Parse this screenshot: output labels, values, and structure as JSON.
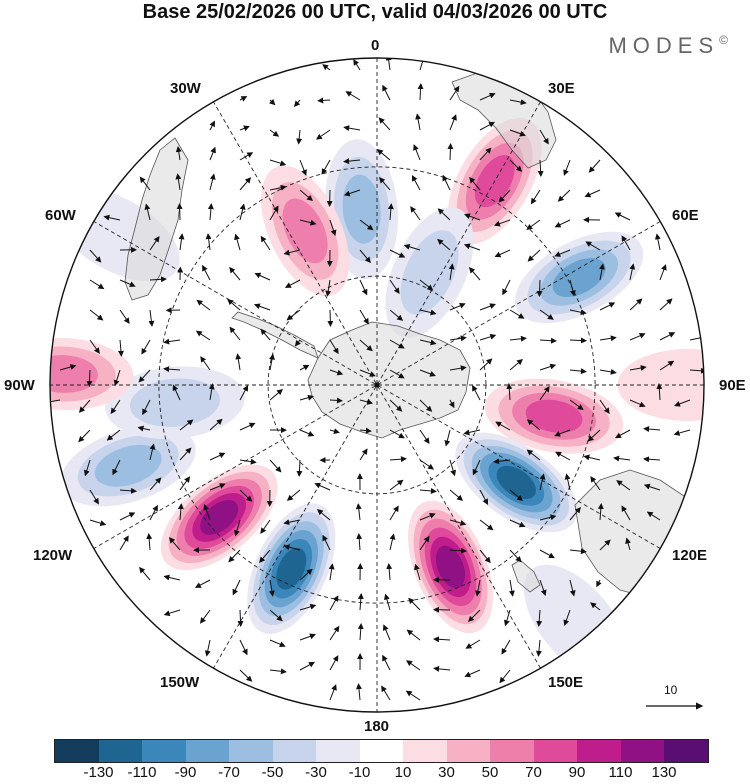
{
  "title": "Base 25/02/2026 00 UTC, valid 04/03/2026 00 UTC",
  "brand": "MODES",
  "brand_mark": "©",
  "longitude_labels": {
    "lon_0": "0",
    "lon_30e": "30E",
    "lon_60e": "60E",
    "lon_90e": "90E",
    "lon_120e": "120E",
    "lon_150e": "150E",
    "lon_180": "180",
    "lon_150w": "150W",
    "lon_120w": "120W",
    "lon_90w": "90W",
    "lon_60w": "60W",
    "lon_30w": "30W"
  },
  "vector_scale_label": "10",
  "colorbar": {
    "colors": [
      "#133c5c",
      "#1f6591",
      "#3b86bb",
      "#6aa3cf",
      "#9cbfe1",
      "#c7d4ec",
      "#e8e8f4",
      "#ffffff",
      "#fcdde3",
      "#f6b1c4",
      "#ee7eac",
      "#df4a9a",
      "#c01d8c",
      "#8f1183",
      "#5a0d73"
    ],
    "tick_labels": [
      "-130",
      "-110",
      "-90",
      "-70",
      "-50",
      "-30",
      "-10",
      "10",
      "30",
      "50",
      "70",
      "90",
      "110",
      "130"
    ]
  },
  "anomalies": [
    {
      "lon": 30,
      "colat": 0.72,
      "value": 70
    },
    {
      "lon": -5,
      "colat": 0.54,
      "value": -60
    },
    {
      "lon": 25,
      "colat": 0.38,
      "value": -30
    },
    {
      "lon": -25,
      "colat": 0.52,
      "value": 50
    },
    {
      "lon": 62,
      "colat": 0.7,
      "value": -70
    },
    {
      "lon": 100,
      "colat": 0.55,
      "value": 80
    },
    {
      "lon": 125,
      "colat": 0.52,
      "value": -120
    },
    {
      "lon": 158,
      "colat": 0.6,
      "value": 125
    },
    {
      "lon": -155,
      "colat": 0.62,
      "value": -115
    },
    {
      "lon": -130,
      "colat": 0.63,
      "value": 120
    },
    {
      "lon": -108,
      "colat": 0.8,
      "value": -60
    },
    {
      "lon": -95,
      "colat": 0.62,
      "value": -40
    },
    {
      "lon": -88,
      "colat": 0.96,
      "value": 60
    },
    {
      "lon": -60,
      "colat": 0.92,
      "value": -20
    },
    {
      "lon": 90,
      "colat": 0.95,
      "value": 20
    },
    {
      "lon": 140,
      "colat": 0.95,
      "value": -15
    }
  ]
}
